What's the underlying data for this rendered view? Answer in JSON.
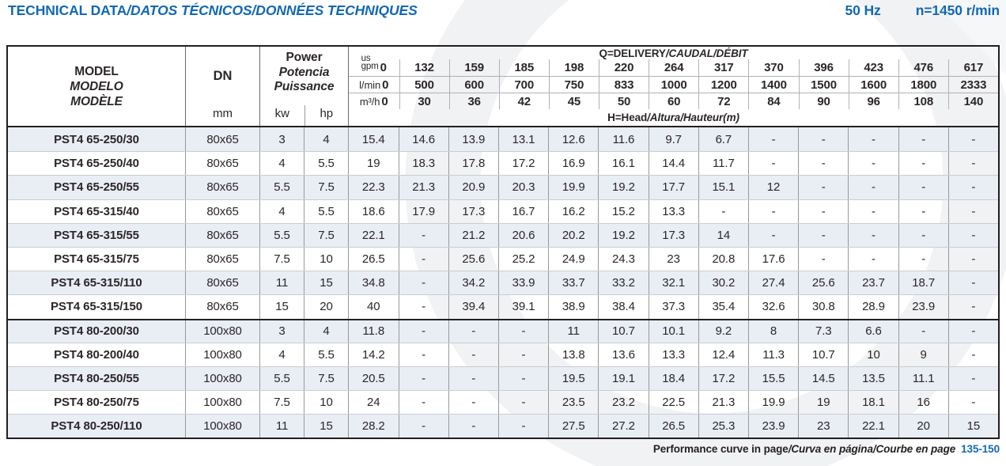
{
  "page": {
    "title_primary": "TECHNICAL DATA",
    "title_secondary": "/DATOS TÉCNICOS/DONNÉES TECHNIQUES",
    "frequency": "50 Hz",
    "speed": "n=1450 r/min",
    "accent_blue": "#1268b3"
  },
  "table": {
    "header": {
      "model": [
        "MODEL",
        "MODELO",
        "MODÈLE"
      ],
      "dn_label": "DN",
      "dn_unit": "mm",
      "power": [
        "Power",
        "Potencia",
        "Puissance"
      ],
      "power_units": [
        "kw",
        "hp"
      ],
      "q_title_primary": "Q=DELIVERY",
      "q_title_secondary": "/CAUDAL/DÉBIT",
      "h_title_primary": "H=Head",
      "h_title_secondary": "/Altura/Hauteur",
      "h_title_unit": "(m)",
      "unit_rows": [
        {
          "id": "usgpm",
          "label_lines": [
            "us",
            "gpm"
          ],
          "zero": "0",
          "values": [
            "132",
            "159",
            "185",
            "198",
            "220",
            "264",
            "317",
            "370",
            "396",
            "423",
            "476",
            "617"
          ]
        },
        {
          "id": "lmin",
          "label": "l/min",
          "zero": "0",
          "values": [
            "500",
            "600",
            "700",
            "750",
            "833",
            "1000",
            "1200",
            "1400",
            "1500",
            "1600",
            "1800",
            "2333"
          ]
        },
        {
          "id": "m3h",
          "label": "m³/h",
          "zero": "0",
          "values": [
            "30",
            "36",
            "42",
            "45",
            "50",
            "60",
            "72",
            "84",
            "90",
            "96",
            "108",
            "140"
          ]
        }
      ]
    },
    "rows": [
      {
        "model": "PST4 65-250/30",
        "dn": "80x65",
        "kw": "3",
        "hp": "4",
        "head": [
          "15.4",
          "14.6",
          "13.9",
          "13.1",
          "12.6",
          "11.6",
          "9.7",
          "6.7",
          "-",
          "-",
          "-",
          "-",
          "-"
        ]
      },
      {
        "model": "PST4 65-250/40",
        "dn": "80x65",
        "kw": "4",
        "hp": "5.5",
        "head": [
          "19",
          "18.3",
          "17.8",
          "17.2",
          "16.9",
          "16.1",
          "14.4",
          "11.7",
          "-",
          "-",
          "-",
          "-",
          "-"
        ]
      },
      {
        "model": "PST4 65-250/55",
        "dn": "80x65",
        "kw": "5.5",
        "hp": "7.5",
        "head": [
          "22.3",
          "21.3",
          "20.9",
          "20.3",
          "19.9",
          "19.2",
          "17.7",
          "15.1",
          "12",
          "-",
          "-",
          "-",
          "-"
        ]
      },
      {
        "model": "PST4 65-315/40",
        "dn": "80x65",
        "kw": "4",
        "hp": "5.5",
        "head": [
          "18.6",
          "17.9",
          "17.3",
          "16.7",
          "16.2",
          "15.2",
          "13.3",
          "-",
          "-",
          "-",
          "-",
          "-",
          "-"
        ]
      },
      {
        "model": "PST4 65-315/55",
        "dn": "80x65",
        "kw": "5.5",
        "hp": "7.5",
        "head": [
          "22.1",
          "-",
          "21.2",
          "20.6",
          "20.2",
          "19.2",
          "17.3",
          "14",
          "-",
          "-",
          "-",
          "-",
          "-"
        ]
      },
      {
        "model": "PST4 65-315/75",
        "dn": "80x65",
        "kw": "7.5",
        "hp": "10",
        "head": [
          "26.5",
          "-",
          "25.6",
          "25.2",
          "24.9",
          "24.3",
          "23",
          "20.8",
          "17.6",
          "-",
          "-",
          "-",
          "-"
        ]
      },
      {
        "model": "PST4 65-315/110",
        "dn": "80x65",
        "kw": "11",
        "hp": "15",
        "head": [
          "34.8",
          "-",
          "34.2",
          "33.9",
          "33.7",
          "33.2",
          "32.1",
          "30.2",
          "27.4",
          "25.6",
          "23.7",
          "18.7",
          "-"
        ]
      },
      {
        "model": "PST4 65-315/150",
        "dn": "80x65",
        "kw": "15",
        "hp": "20",
        "head": [
          "40",
          "-",
          "39.4",
          "39.1",
          "38.9",
          "38.4",
          "37.3",
          "35.4",
          "32.6",
          "30.8",
          "28.9",
          "23.9",
          "-"
        ]
      },
      {
        "model": "PST4 80-200/30",
        "dn": "100x80",
        "kw": "3",
        "hp": "4",
        "group_start": true,
        "head": [
          "11.8",
          "-",
          "-",
          "-",
          "11",
          "10.7",
          "10.1",
          "9.2",
          "8",
          "7.3",
          "6.6",
          "-",
          "-"
        ]
      },
      {
        "model": "PST4 80-200/40",
        "dn": "100x80",
        "kw": "4",
        "hp": "5.5",
        "head": [
          "14.2",
          "-",
          "-",
          "-",
          "13.8",
          "13.6",
          "13.3",
          "12.4",
          "11.3",
          "10.7",
          "10",
          "9",
          "-"
        ]
      },
      {
        "model": "PST4 80-250/55",
        "dn": "100x80",
        "kw": "5.5",
        "hp": "7.5",
        "head": [
          "20.5",
          "-",
          "-",
          "-",
          "19.5",
          "19.1",
          "18.4",
          "17.2",
          "15.5",
          "14.5",
          "13.5",
          "11.1",
          "-"
        ]
      },
      {
        "model": "PST4 80-250/75",
        "dn": "100x80",
        "kw": "7.5",
        "hp": "10",
        "head": [
          "24",
          "-",
          "-",
          "-",
          "23.5",
          "23.2",
          "22.5",
          "21.3",
          "19.9",
          "19",
          "18.1",
          "16",
          "-"
        ]
      },
      {
        "model": "PST4 80-250/110",
        "dn": "100x80",
        "kw": "11",
        "hp": "15",
        "head": [
          "28.2",
          "-",
          "-",
          "-",
          "27.5",
          "27.2",
          "26.5",
          "25.3",
          "23.9",
          "23",
          "22.1",
          "20",
          "15"
        ]
      }
    ]
  },
  "footer": {
    "text_primary": "Performance curve in page",
    "text_secondary": "/Curva en página/Courbe en page",
    "pages": "135-150"
  }
}
